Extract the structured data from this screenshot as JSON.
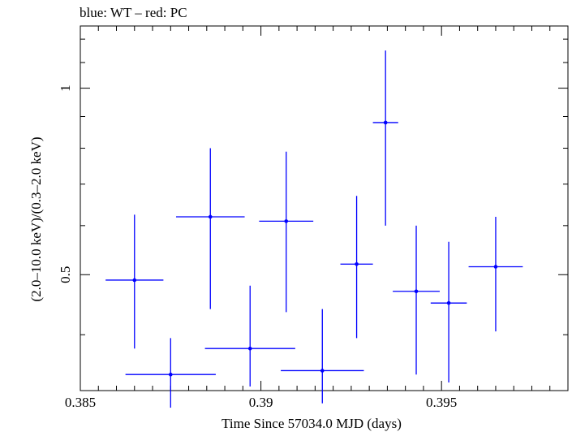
{
  "chart_data": {
    "type": "scatter",
    "title": "blue: WT – red: PC",
    "xlabel": "Time Since 57034.0 MJD (days)",
    "ylabel": "(2.0–10.0 keV)/(0.3–2.0 keV)",
    "x_scale": "linear",
    "y_scale": "log",
    "xlim": [
      0.385,
      0.3985
    ],
    "ylim": [
      0.325,
      1.26
    ],
    "x_ticks": [
      {
        "value": 0.385,
        "label": "0.385"
      },
      {
        "value": 0.39,
        "label": "0.39"
      },
      {
        "value": 0.395,
        "label": "0.395"
      }
    ],
    "y_ticks": [
      {
        "value": 0.5,
        "label": "0.5"
      },
      {
        "value": 1.0,
        "label": "1"
      }
    ],
    "grid": false,
    "series": [
      {
        "color": "#0000ff",
        "points": [
          {
            "x": 0.3865,
            "xerr": 0.0008,
            "y": 0.49,
            "ylo": 0.38,
            "yhi": 0.625
          },
          {
            "x": 0.3875,
            "xerr": 0.00125,
            "y": 0.345,
            "ylo": 0.305,
            "yhi": 0.395
          },
          {
            "x": 0.3886,
            "xerr": 0.00095,
            "y": 0.62,
            "ylo": 0.44,
            "yhi": 0.8
          },
          {
            "x": 0.3897,
            "xerr": 0.00125,
            "y": 0.38,
            "ylo": 0.33,
            "yhi": 0.48
          },
          {
            "x": 0.3907,
            "xerr": 0.00075,
            "y": 0.61,
            "ylo": 0.435,
            "yhi": 0.79
          },
          {
            "x": 0.3917,
            "xerr": 0.00115,
            "y": 0.35,
            "ylo": 0.31,
            "yhi": 0.44
          },
          {
            "x": 0.39265,
            "xerr": 0.00045,
            "y": 0.52,
            "ylo": 0.395,
            "yhi": 0.67
          },
          {
            "x": 0.39345,
            "xerr": 0.00035,
            "y": 0.88,
            "ylo": 0.6,
            "yhi": 1.15
          },
          {
            "x": 0.3943,
            "xerr": 0.00065,
            "y": 0.47,
            "ylo": 0.345,
            "yhi": 0.6
          },
          {
            "x": 0.3952,
            "xerr": 0.0005,
            "y": 0.45,
            "ylo": 0.335,
            "yhi": 0.565
          },
          {
            "x": 0.3965,
            "xerr": 0.00075,
            "y": 0.515,
            "ylo": 0.405,
            "yhi": 0.62
          }
        ]
      }
    ]
  }
}
